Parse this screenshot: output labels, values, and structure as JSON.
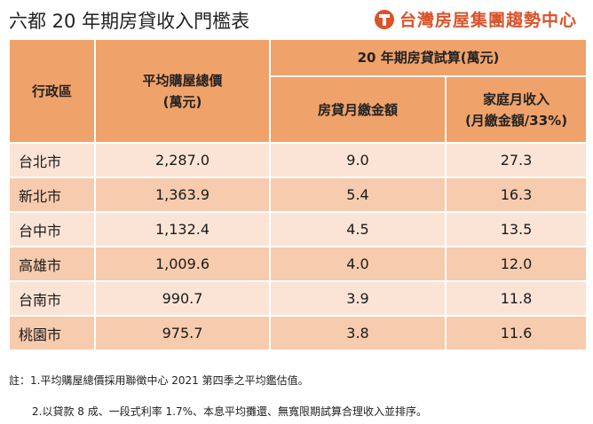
{
  "title": "六都 20 年期房貸收入門檻表",
  "brand": {
    "name": "台灣房屋集團趨勢中心",
    "logo_icon": "t-logo-icon"
  },
  "table": {
    "headers": {
      "district": "行政區",
      "avg_price_line1": "平均購屋總價",
      "avg_price_line2": "(萬元)",
      "loan_group": "20 年期房貸試算(萬元)",
      "monthly_payment": "房貸月繳金額",
      "income_line1": "家庭月收入",
      "income_line2": "(月繳金額/33%)"
    },
    "rows": [
      {
        "city": "台北市",
        "price": "2,287.0",
        "payment": "9.0",
        "income": "27.3"
      },
      {
        "city": "新北市",
        "price": "1,363.9",
        "payment": "5.4",
        "income": "16.3"
      },
      {
        "city": "台中市",
        "price": "1,132.4",
        "payment": "4.5",
        "income": "13.5"
      },
      {
        "city": "高雄市",
        "price": "1,009.6",
        "payment": "4.0",
        "income": "12.0"
      },
      {
        "city": "台南市",
        "price": "990.7",
        "payment": "3.9",
        "income": "11.8"
      },
      {
        "city": "桃園市",
        "price": "975.7",
        "payment": "3.8",
        "income": "11.6"
      }
    ]
  },
  "notes": [
    "註：1.平均購屋總價採用聯徵中心 2021 第四季之平均鑑估值。",
    "2.以貸款 8 成、一段式利率 1.7%、本息平均攤還、無寬限期試算合理收入並排序。"
  ],
  "colors": {
    "header": "#f0a26b",
    "row_light": "#fbe4d6",
    "row_dark": "#f7cbad",
    "brand": "#d9532b"
  }
}
